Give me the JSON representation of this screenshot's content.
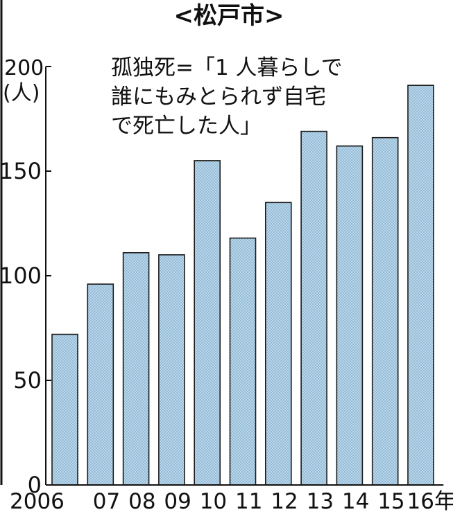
{
  "chart_data": {
    "type": "bar",
    "title": "<松戸市>",
    "ylabel_value": "200",
    "ylabel_unit": "(人)",
    "annotation": [
      "孤独死=「1 人暮らしで",
      "誰にもみとられず自宅",
      "で死亡した人」"
    ],
    "categories": [
      "2006",
      "07",
      "08",
      "09",
      "10",
      "11",
      "12",
      "13",
      "14",
      "15",
      "16年"
    ],
    "values": [
      72,
      96,
      111,
      110,
      155,
      118,
      135,
      169,
      162,
      166,
      191
    ],
    "ylim": [
      0,
      200
    ],
    "yticks": [
      {
        "value": 0,
        "label": "0"
      },
      {
        "value": 50,
        "label": "50"
      },
      {
        "value": 100,
        "label": "100"
      },
      {
        "value": 150,
        "label": "150"
      }
    ],
    "grid": false,
    "bar_fill": "#a9cbe3",
    "bar_stroke": "#1a1a1a"
  }
}
